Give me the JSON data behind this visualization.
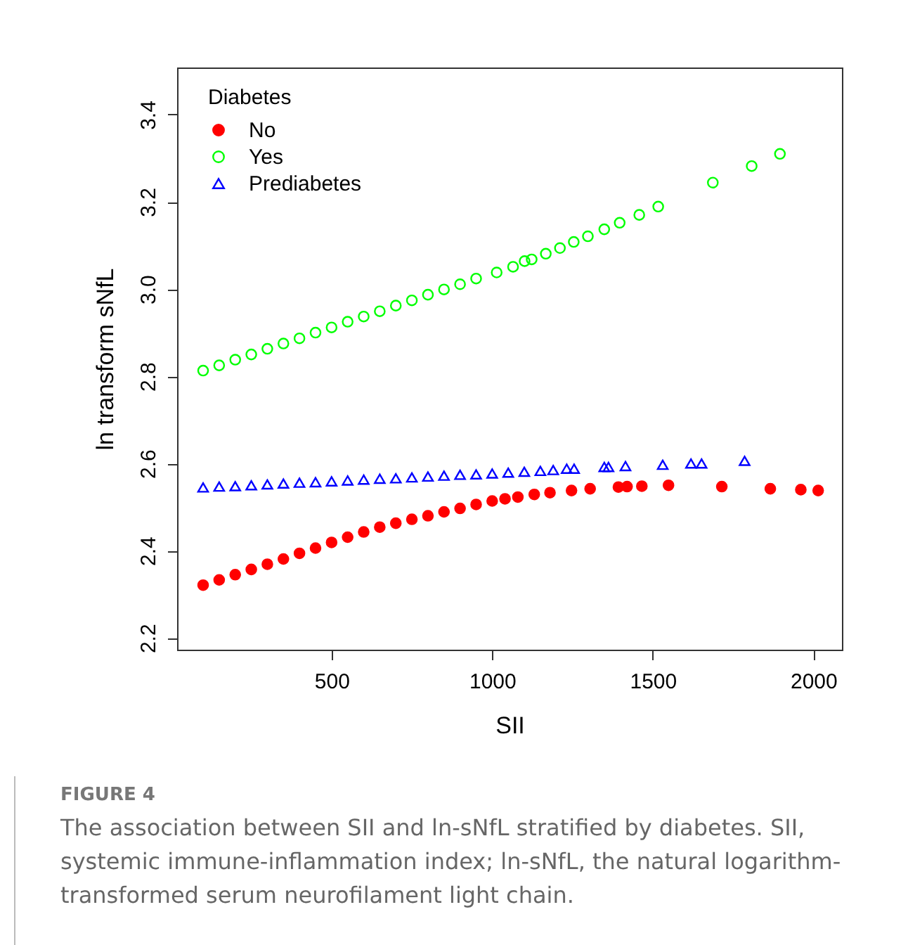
{
  "chart_data": {
    "type": "scatter",
    "xlabel": "SII",
    "ylabel": "ln transform sNfL",
    "legend_title": "Diabetes",
    "legend": "top left",
    "grid": false,
    "xlim": [
      19,
      2089
    ],
    "xticks": [
      500,
      1000,
      1500,
      2000
    ],
    "ylim": [
      2.173,
      3.508
    ],
    "yticks": [
      2.2,
      2.4,
      2.6,
      2.8,
      {
        "value": 3,
        "label": "3.0"
      },
      3.2,
      3.4
    ],
    "annotations": [
      "FIGURE 4",
      "The association between SII and ln-sNfL stratified by diabetes. SII, systemic immune-inflammation index; ln-sNfL, the natural logarithm-transformed serum neurofilament light chain."
    ],
    "series": [
      {
        "name": "No",
        "color": "#ff0000",
        "marker": "circle",
        "x": [
          100,
          150,
          200,
          250,
          300,
          350,
          400,
          450,
          500,
          550,
          600,
          650,
          700,
          750,
          800,
          850,
          900,
          950,
          1000,
          1040,
          1080,
          1131,
          1180,
          1247,
          1305,
          1393,
          1420,
          1466,
          1549,
          1715,
          1866,
          1961,
          2015
        ],
        "values": [
          2.321,
          2.333,
          2.345,
          2.357,
          2.369,
          2.381,
          2.394,
          2.406,
          2.419,
          2.431,
          2.443,
          2.454,
          2.463,
          2.472,
          2.48,
          2.489,
          2.497,
          2.506,
          2.514,
          2.519,
          2.523,
          2.529,
          2.533,
          2.538,
          2.542,
          2.546,
          2.547,
          2.548,
          2.55,
          2.547,
          2.542,
          2.54,
          2.538
        ]
      },
      {
        "name": "Yes",
        "color": "#00ff00",
        "marker": "circle",
        "x": [
          100,
          150,
          200,
          250,
          300,
          350,
          400,
          450,
          500,
          550,
          600,
          650,
          700,
          750,
          800,
          850,
          900,
          950,
          1014,
          1065,
          1101,
          1123,
          1167,
          1211,
          1254,
          1298,
          1349,
          1397,
          1458,
          1517,
          1687,
          1808,
          1896
        ],
        "values": [
          2.813,
          2.825,
          2.838,
          2.85,
          2.863,
          2.875,
          2.887,
          2.9,
          2.912,
          2.925,
          2.937,
          2.949,
          2.962,
          2.974,
          2.987,
          2.999,
          3.011,
          3.024,
          3.038,
          3.051,
          3.064,
          3.068,
          3.081,
          3.094,
          3.108,
          3.121,
          3.137,
          3.152,
          3.17,
          3.189,
          3.244,
          3.282,
          3.31
        ]
      },
      {
        "name": "Prediabetes",
        "color": "#0000ff",
        "marker": "triangle",
        "x": [
          100,
          150,
          200,
          250,
          300,
          350,
          400,
          450,
          500,
          550,
          600,
          650,
          700,
          750,
          800,
          850,
          900,
          950,
          1000,
          1050,
          1100,
          1150,
          1190,
          1232,
          1255,
          1349,
          1362,
          1415,
          1531,
          1619,
          1652,
          1786
        ],
        "values": [
          2.545,
          2.547,
          2.548,
          2.55,
          2.552,
          2.554,
          2.556,
          2.557,
          2.559,
          2.561,
          2.563,
          2.565,
          2.566,
          2.568,
          2.57,
          2.572,
          2.574,
          2.575,
          2.577,
          2.579,
          2.581,
          2.583,
          2.585,
          2.588,
          2.588,
          2.592,
          2.592,
          2.594,
          2.597,
          2.6,
          2.6,
          2.606
        ]
      }
    ]
  }
}
